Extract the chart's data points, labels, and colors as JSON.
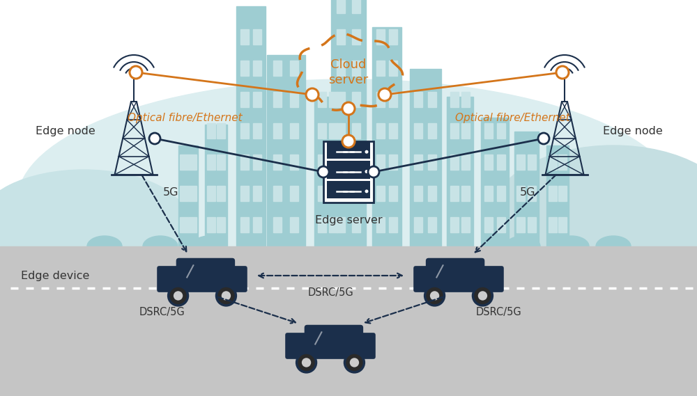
{
  "bg_color": "#ffffff",
  "road_color": "#c5c5c5",
  "road_line_color": "#ffffff",
  "city_bg_color": "#dceef0",
  "city_elem_color": "#9ecdd2",
  "city_elem_color2": "#b8dde0",
  "orange_color": "#d4751a",
  "dark_navy": "#1b2f4b",
  "label_color": "#333333",
  "labels": {
    "cloud": "Cloud\nserver",
    "edge_server": "Edge server",
    "edge_node_left": "Edge node",
    "edge_node_right": "Edge node",
    "edge_device": "Edge device",
    "optical_left": "Optical fibre/Ethernet",
    "optical_right": "Optical fibre/Ethernet",
    "5g_left": "5G",
    "5g_right": "5G",
    "dsrc_top": "DSRC/5G",
    "dsrc_bottom_left": "DSRC/5G",
    "dsrc_bottom_right": "DSRC/5G"
  }
}
